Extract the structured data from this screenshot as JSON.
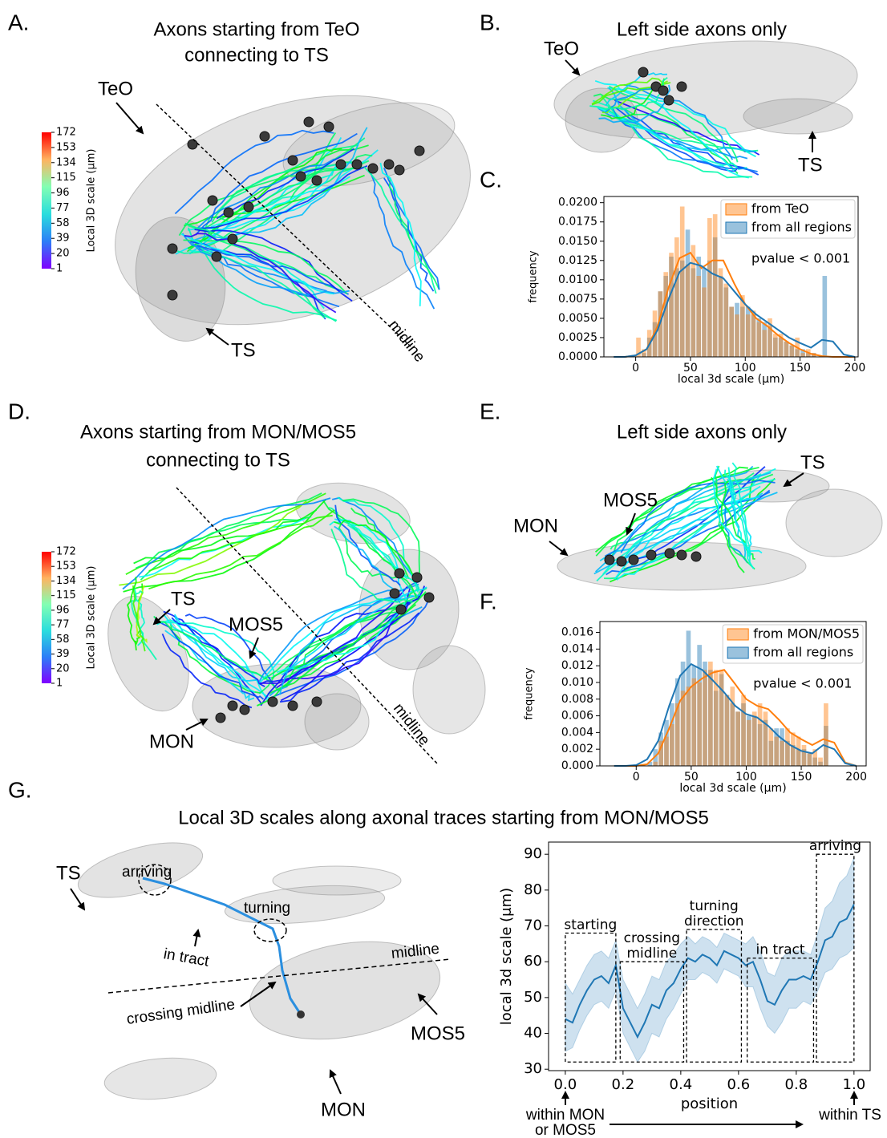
{
  "panels": {
    "a": {
      "label": "A.",
      "title": [
        "Axons starting from TeO",
        "connecting to TS"
      ],
      "labels": {
        "teo": "TeO",
        "ts": "TS",
        "midline": "midline"
      },
      "colorbar": {
        "label": "Local 3D scale (μm)",
        "lim": [
          1,
          172
        ],
        "ticks": [
          1,
          20,
          39,
          58,
          77,
          96,
          115,
          134,
          153,
          172
        ]
      }
    },
    "b": {
      "label": "B.",
      "title": "Left side axons only",
      "labels": {
        "teo": "TeO",
        "ts": "TS"
      }
    },
    "c": {
      "label": "C."
    },
    "d": {
      "label": "D.",
      "title": [
        "Axons starting from MON/MOS5",
        "connecting to TS"
      ],
      "labels": {
        "ts": "TS",
        "mos5": "MOS5",
        "mon": "MON",
        "midline": "midline"
      },
      "colorbar": {
        "label": "Local 3D scale (μm)",
        "lim": [
          1,
          172
        ],
        "ticks": [
          1,
          20,
          39,
          58,
          77,
          96,
          115,
          134,
          153,
          172
        ]
      }
    },
    "e": {
      "label": "E.",
      "title": "Left side axons only",
      "labels": {
        "ts": "TS",
        "mos5": "MOS5",
        "mon": "MON"
      }
    },
    "f": {
      "label": "F."
    },
    "g": {
      "label": "G.",
      "title": "Local 3D scales along axonal traces starting from MON/MOS5",
      "labels": {
        "ts": "TS",
        "arriving": "arriving",
        "turning": "turning",
        "in_tract": "in tract",
        "midline": "midline",
        "crossing": "crossing midline",
        "mos5": "MOS5",
        "mon": "MON"
      },
      "notes": {
        "start": [
          "within MON",
          "or MOS5"
        ],
        "end": "within TS"
      }
    }
  },
  "chart_data": [
    {
      "type": "histogram",
      "xlabel": "local 3d scale (μm)",
      "ylabel": "frequency",
      "annotation": "pvalue < 0.001",
      "legend": "upper right",
      "bins": [
        0,
        5,
        10,
        15,
        20,
        25,
        30,
        35,
        40,
        45,
        50,
        55,
        60,
        65,
        70,
        75,
        80,
        85,
        90,
        95,
        100,
        105,
        110,
        115,
        120,
        125,
        130,
        135,
        140,
        145,
        150,
        155,
        160,
        165,
        170,
        175,
        180
      ],
      "kde_x": [
        -20,
        -10,
        0,
        10,
        20,
        30,
        40,
        50,
        60,
        70,
        80,
        90,
        100,
        110,
        120,
        130,
        140,
        150,
        160,
        170,
        180,
        190,
        200
      ],
      "series": [
        {
          "name": "from TeO",
          "color": "#ff7f0e",
          "values": [
            0.0025,
            0.001,
            0.0035,
            0.006,
            0.0085,
            0.011,
            0.0135,
            0.0155,
            0.0195,
            0.012,
            0.0145,
            0.0105,
            0.009,
            0.018,
            0.0185,
            0.0115,
            0.0095,
            0.0065,
            0.0055,
            0.008,
            0.0055,
            0.006,
            0.0045,
            0.0035,
            0.005,
            0.003,
            0.003,
            0.002,
            0.0015,
            0.0025,
            0.0005,
            0.001,
            0.0005,
            0,
            0,
            0
          ],
          "kde": [
            0,
            0,
            0.0002,
            0.001,
            0.004,
            0.009,
            0.0128,
            0.0135,
            0.0115,
            0.0125,
            0.0125,
            0.0095,
            0.0068,
            0.005,
            0.004,
            0.0028,
            0.0018,
            0.001,
            0.0004,
            0.0001,
            0,
            0,
            0
          ]
        },
        {
          "name": "from all regions",
          "color": "#1f77b4",
          "values": [
            0,
            0.0005,
            0.0025,
            0.0045,
            0.0085,
            0.0105,
            0.013,
            0.0115,
            0.0125,
            0.0165,
            0.0115,
            0.013,
            0.0115,
            0.0125,
            0.0155,
            0.0105,
            0.009,
            0.0065,
            0.007,
            0.0065,
            0.0065,
            0.0055,
            0.005,
            0.0045,
            0.004,
            0.0025,
            0.0025,
            0.002,
            0.0015,
            0.001,
            0.001,
            0.0005,
            0.0005,
            0,
            0.0105,
            0
          ],
          "kde": [
            0,
            0,
            0.0002,
            0.001,
            0.0035,
            0.0075,
            0.011,
            0.0122,
            0.0118,
            0.0108,
            0.0102,
            0.0085,
            0.0068,
            0.0055,
            0.0045,
            0.0035,
            0.0025,
            0.0018,
            0.0012,
            0.0022,
            0.002,
            0.0003,
            0
          ]
        }
      ],
      "xlim": [
        -29,
        203
      ],
      "xticks": [
        0,
        50,
        100,
        150,
        200
      ],
      "ylim": [
        0,
        0.0208
      ],
      "yticks": [
        {
          "value": 0,
          "label": "0.0000"
        },
        {
          "value": 0.0025,
          "label": "0.0025"
        },
        {
          "value": 0.005,
          "label": "0.0050"
        },
        {
          "value": 0.0075,
          "label": "0.0075"
        },
        {
          "value": 0.01,
          "label": "0.0100"
        },
        {
          "value": 0.0125,
          "label": "0.0125"
        },
        {
          "value": 0.015,
          "label": "0.0150"
        },
        {
          "value": 0.0175,
          "label": "0.0175"
        },
        {
          "value": 0.02,
          "label": "0.0200"
        }
      ]
    },
    {
      "type": "histogram",
      "xlabel": "local 3d scale (μm)",
      "ylabel": "frequency",
      "annotation": "pvalue < 0.001",
      "legend": "upper right",
      "bins": [
        0,
        5,
        10,
        15,
        20,
        25,
        30,
        35,
        40,
        45,
        50,
        55,
        60,
        65,
        70,
        75,
        80,
        85,
        90,
        95,
        100,
        105,
        110,
        115,
        120,
        125,
        130,
        135,
        140,
        145,
        150,
        155,
        160,
        165,
        170,
        175,
        180
      ],
      "kde_x": [
        -20,
        -10,
        0,
        10,
        20,
        30,
        40,
        50,
        60,
        70,
        80,
        90,
        100,
        110,
        120,
        130,
        140,
        150,
        160,
        170,
        180,
        190,
        200
      ],
      "series": [
        {
          "name": "from MON/MOS5",
          "color": "#ff7f0e",
          "values": [
            0,
            0,
            0,
            0.0005,
            0.003,
            0.0035,
            0.005,
            0.0075,
            0.009,
            0.0095,
            0.0105,
            0.01,
            0.0115,
            0.0125,
            0.0115,
            0.0115,
            0.0085,
            0.0095,
            0.0065,
            0.0085,
            0.0055,
            0.0065,
            0.0075,
            0.0065,
            0.0045,
            0.0035,
            0.003,
            0.0045,
            0.004,
            0.0035,
            0.0025,
            0.0015,
            0.002,
            0.001,
            0.0075,
            0
          ],
          "kde": [
            0,
            0,
            0,
            0.0002,
            0.0015,
            0.0045,
            0.0078,
            0.0095,
            0.0105,
            0.0112,
            0.0115,
            0.0098,
            0.008,
            0.0072,
            0.0068,
            0.0055,
            0.004,
            0.0032,
            0.0025,
            0.0032,
            0.0028,
            0.0004,
            0
          ]
        },
        {
          "name": "from all regions",
          "color": "#1f77b4",
          "values": [
            0,
            0,
            0.0005,
            0.002,
            0.004,
            0.0055,
            0.0075,
            0.0105,
            0.0125,
            0.0162,
            0.012,
            0.0145,
            0.0125,
            0.0115,
            0.009,
            0.011,
            0.0085,
            0.0075,
            0.0065,
            0.0075,
            0.006,
            0.006,
            0.005,
            0.0055,
            0.003,
            0.0045,
            0.0045,
            0.003,
            0.0025,
            0.002,
            0.002,
            0.0015,
            0.001,
            0.0005,
            0.0048,
            0
          ],
          "kde": [
            0,
            0,
            0.0001,
            0.0008,
            0.003,
            0.0072,
            0.0108,
            0.0122,
            0.0115,
            0.0102,
            0.0088,
            0.0072,
            0.0062,
            0.0058,
            0.0048,
            0.0035,
            0.0025,
            0.0018,
            0.0015,
            0.0025,
            0.002,
            0.0003,
            0
          ]
        }
      ],
      "xlim": [
        -33,
        209
      ],
      "xticks": [
        0,
        50,
        100,
        150,
        200
      ],
      "ylim": [
        0,
        0.0173
      ],
      "yticks": [
        {
          "value": 0,
          "label": "0.000"
        },
        {
          "value": 0.002,
          "label": "0.002"
        },
        {
          "value": 0.004,
          "label": "0.004"
        },
        {
          "value": 0.006,
          "label": "0.006"
        },
        {
          "value": 0.008,
          "label": "0.008"
        },
        {
          "value": 0.01,
          "label": "0.010"
        },
        {
          "value": 0.012,
          "label": "0.012"
        },
        {
          "value": 0.014,
          "label": "0.014"
        },
        {
          "value": 0.016,
          "label": "0.016"
        }
      ]
    },
    {
      "type": "line_band",
      "xlabel": "position",
      "ylabel": "local 3d scale (μm)",
      "color": "#1f77b4",
      "x": [
        0,
        0.025,
        0.05,
        0.075,
        0.1,
        0.125,
        0.15,
        0.175,
        0.2,
        0.225,
        0.25,
        0.275,
        0.3,
        0.325,
        0.35,
        0.375,
        0.4,
        0.425,
        0.45,
        0.475,
        0.5,
        0.525,
        0.55,
        0.575,
        0.6,
        0.625,
        0.65,
        0.675,
        0.7,
        0.725,
        0.75,
        0.775,
        0.8,
        0.825,
        0.85,
        0.875,
        0.9,
        0.925,
        0.95,
        0.975,
        1
      ],
      "values": [
        44,
        43,
        48,
        52,
        55,
        56,
        54,
        59,
        47,
        43,
        39,
        43,
        48,
        47,
        52,
        54,
        58,
        61,
        60,
        62,
        61,
        59,
        63,
        62,
        61,
        59,
        60,
        55,
        49,
        48,
        52,
        55,
        55,
        56,
        55,
        60,
        66,
        67,
        71,
        72,
        76
      ],
      "lower": [
        35,
        36,
        41,
        45,
        48,
        49,
        47,
        52,
        40,
        36,
        32,
        35,
        40,
        39,
        44,
        47,
        51,
        55,
        55,
        57,
        56,
        54,
        58,
        57,
        56,
        53,
        53,
        47,
        42,
        40,
        43,
        47,
        47,
        49,
        48,
        52,
        57,
        58,
        61,
        62,
        64
      ],
      "upper": [
        54,
        51,
        55,
        59,
        62,
        63,
        61,
        66,
        55,
        51,
        47,
        51,
        56,
        55,
        60,
        62,
        65,
        67,
        65,
        67,
        66,
        64,
        68,
        67,
        66,
        65,
        67,
        63,
        57,
        56,
        61,
        63,
        63,
        63,
        62,
        68,
        75,
        77,
        82,
        84,
        89
      ],
      "regions": [
        {
          "label": [
            "starting"
          ],
          "x": [
            0,
            0.175
          ],
          "y": [
            32,
            68
          ]
        },
        {
          "label": [
            "crossing",
            "midline"
          ],
          "x": [
            0.19,
            0.41
          ],
          "y": [
            32,
            60
          ]
        },
        {
          "label": [
            "turning",
            "direction"
          ],
          "x": [
            0.42,
            0.61
          ],
          "y": [
            32,
            69
          ]
        },
        {
          "label": [
            "in tract"
          ],
          "x": [
            0.63,
            0.86
          ],
          "y": [
            32,
            61
          ]
        },
        {
          "label": [
            "arriving"
          ],
          "x": [
            0.87,
            1.0
          ],
          "y": [
            32,
            90
          ]
        }
      ],
      "xlim": [
        -0.058,
        1.056
      ],
      "xticks": [
        {
          "value": 0,
          "label": "0.0"
        },
        {
          "value": 0.2,
          "label": "0.2"
        },
        {
          "value": 0.4,
          "label": "0.4"
        },
        {
          "value": 0.6,
          "label": "0.6"
        },
        {
          "value": 0.8,
          "label": "0.8"
        },
        {
          "value": 1,
          "label": "1.0"
        }
      ],
      "ylim": [
        29.6,
        93.4
      ],
      "yticks": [
        30,
        40,
        50,
        60,
        70,
        80,
        90
      ]
    }
  ]
}
